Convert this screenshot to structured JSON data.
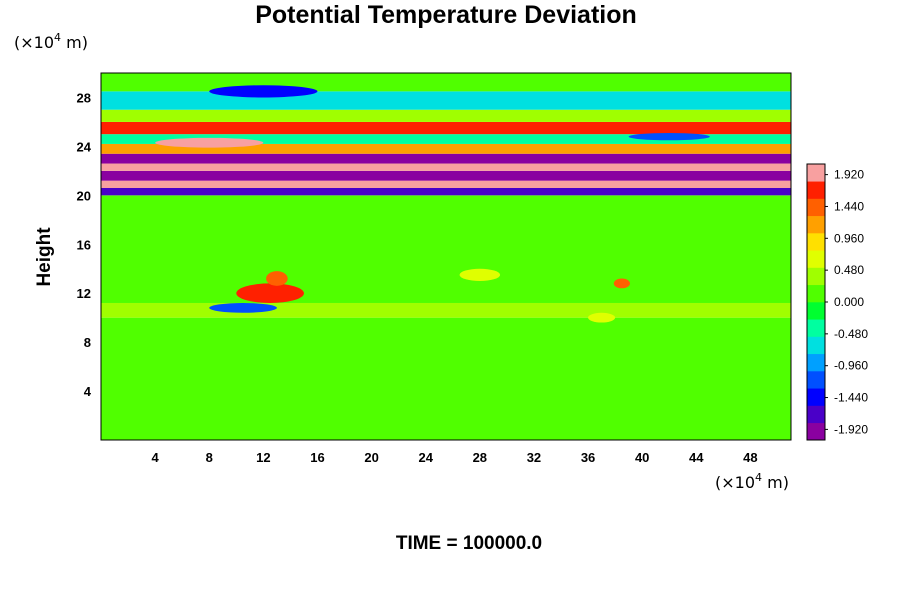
{
  "chart_data": {
    "type": "heatmap",
    "title": "Potential Temperature Deviation",
    "ylabel": "Height",
    "y_unit_prefix": "(×10",
    "y_unit_exp": "4",
    "y_unit_suffix": " m)",
    "x_unit_prefix": "(×10",
    "x_unit_exp": "4",
    "x_unit_suffix": " m)",
    "xlim": [
      0,
      51
    ],
    "ylim": [
      0,
      30
    ],
    "x_ticks": [
      "4",
      "8",
      "12",
      "16",
      "20",
      "24",
      "28",
      "32",
      "36",
      "40",
      "44",
      "48"
    ],
    "x_tick_values": [
      4,
      8,
      12,
      16,
      20,
      24,
      28,
      32,
      36,
      40,
      44,
      48
    ],
    "y_ticks": [
      "4",
      "8",
      "12",
      "16",
      "20",
      "24",
      "28"
    ],
    "y_tick_values": [
      4,
      8,
      12,
      16,
      20,
      24,
      28
    ],
    "colorbar": {
      "range": [
        -2.08,
        2.08
      ],
      "labels": [
        "1.920",
        "1.440",
        "0.960",
        "0.480",
        "0.000",
        "-0.480",
        "-0.960",
        "-1.440",
        "-1.920"
      ],
      "label_values": [
        1.92,
        1.44,
        0.96,
        0.48,
        0,
        -0.48,
        -0.96,
        -1.44,
        -1.92
      ],
      "colors": [
        "#8a00a0",
        "#4a00c8",
        "#0000ff",
        "#0050ff",
        "#00a0ff",
        "#00e0e0",
        "#00ffa0",
        "#00ff30",
        "#50ff00",
        "#a0ff00",
        "#e0ff00",
        "#ffe000",
        "#ffa000",
        "#ff6000",
        "#ff2000",
        "#f8a0a0"
      ]
    },
    "bands": [
      {
        "y_from": 0,
        "y_to": 10,
        "value": 0.05
      },
      {
        "y_from": 10,
        "y_to": 11.2,
        "value": 0.45
      },
      {
        "y_from": 11.2,
        "y_to": 20,
        "value": 0.1
      },
      {
        "y_from": 20,
        "y_to": 20.6,
        "value": -1.6
      },
      {
        "y_from": 20.6,
        "y_to": 21.2,
        "value": 2.0
      },
      {
        "y_from": 21.2,
        "y_to": 22.0,
        "value": -2.0
      },
      {
        "y_from": 22.0,
        "y_to": 22.6,
        "value": 2.0
      },
      {
        "y_from": 22.6,
        "y_to": 23.4,
        "value": -2.0
      },
      {
        "y_from": 23.4,
        "y_to": 24.2,
        "value": 1.2
      },
      {
        "y_from": 24.2,
        "y_to": 25.0,
        "value": -0.4
      },
      {
        "y_from": 25.0,
        "y_to": 26.0,
        "value": 1.6
      },
      {
        "y_from": 26.0,
        "y_to": 27.0,
        "value": 0.3
      },
      {
        "y_from": 27.0,
        "y_to": 28.5,
        "value": -0.7
      },
      {
        "y_from": 28.5,
        "y_to": 30,
        "value": 0.2
      }
    ],
    "features": [
      {
        "x": 12.5,
        "y": 12.0,
        "w": 5.0,
        "h": 1.6,
        "value": 1.6
      },
      {
        "x": 13.0,
        "y": 13.2,
        "w": 1.6,
        "h": 1.2,
        "value": 1.5
      },
      {
        "x": 10.5,
        "y": 10.8,
        "w": 5.0,
        "h": 0.8,
        "value": -1.2
      },
      {
        "x": 12.0,
        "y": 28.5,
        "w": 8.0,
        "h": 1.0,
        "value": -1.4
      },
      {
        "x": 38.5,
        "y": 12.8,
        "w": 1.2,
        "h": 0.8,
        "value": 1.4
      },
      {
        "x": 28.0,
        "y": 13.5,
        "w": 3.0,
        "h": 1.0,
        "value": 0.6
      },
      {
        "x": 37.0,
        "y": 10.0,
        "w": 2.0,
        "h": 0.8,
        "value": 0.7
      },
      {
        "x": 8.0,
        "y": 24.3,
        "w": 8.0,
        "h": 0.8,
        "value": 2.0
      },
      {
        "x": 42.0,
        "y": 24.8,
        "w": 6.0,
        "h": 0.6,
        "value": -1.3
      }
    ]
  },
  "footer": {
    "time_label": "TIME = 100000.0"
  }
}
